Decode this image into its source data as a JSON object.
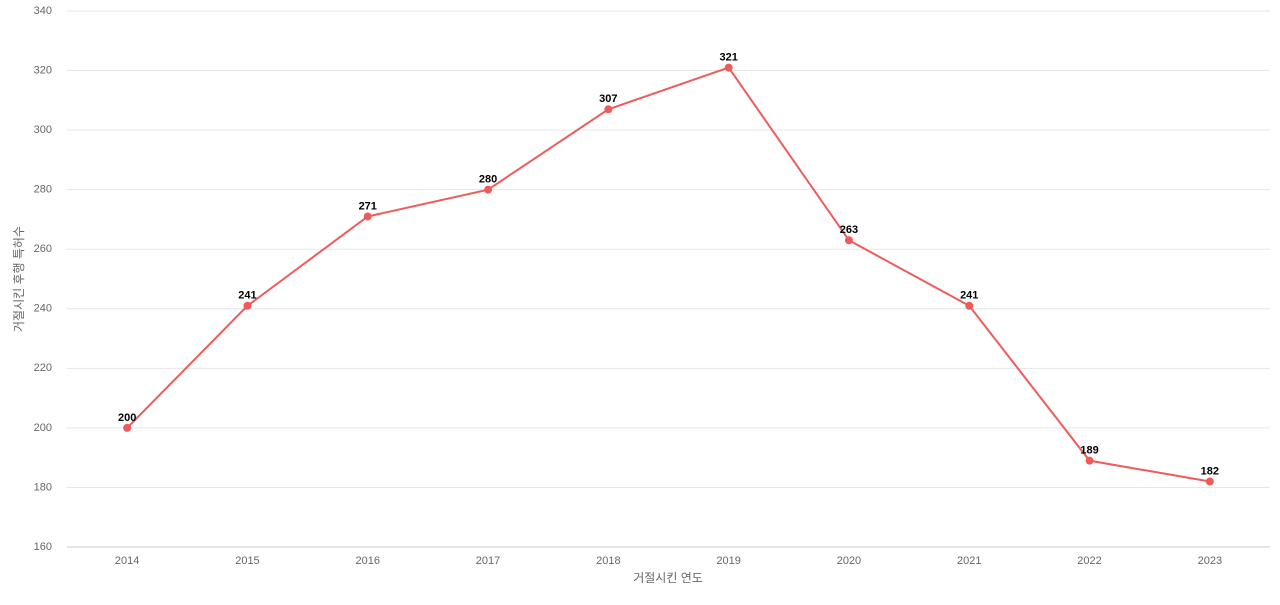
{
  "chart_data": {
    "type": "line",
    "x_label": "거절시킨 연도",
    "y_label": "거절시킨 후행 특허수",
    "categories": [
      "2014",
      "2015",
      "2016",
      "2017",
      "2018",
      "2019",
      "2020",
      "2021",
      "2022",
      "2023"
    ],
    "values": [
      200,
      241,
      271,
      280,
      307,
      321,
      263,
      241,
      189,
      182
    ],
    "color": "#ef5b5b",
    "ylim": [
      160,
      340
    ],
    "yticks": [
      160,
      180,
      200,
      220,
      240,
      260,
      280,
      300,
      320,
      340
    ],
    "grid": true
  }
}
